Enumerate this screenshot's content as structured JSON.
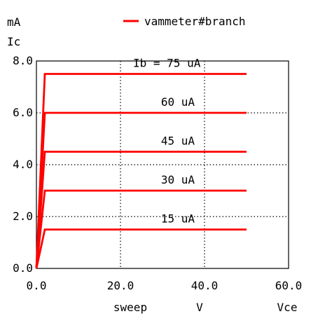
{
  "chart_data": {
    "type": "line",
    "title": "",
    "xlabel": "sweep",
    "xunit": "V",
    "xname": "Vce",
    "ylabel": "Ic",
    "yunit": "mA",
    "xlim": [
      0,
      60
    ],
    "ylim": [
      0,
      8
    ],
    "xticks": [
      0,
      20,
      40,
      60
    ],
    "yticks": [
      0,
      2,
      4,
      6,
      8
    ],
    "xtick_labels": [
      "0.0",
      "20.0",
      "40.0",
      "60.0"
    ],
    "ytick_labels": [
      "0.0",
      "2.0",
      "4.0",
      "6.0",
      "8.0"
    ],
    "grid": true,
    "legend_position": "top",
    "series_color": "#ff0000",
    "legend": {
      "label": "vammeter#branch",
      "color": "#ff0000"
    },
    "series": [
      {
        "name": "vammeter#branch",
        "curves": [
          {
            "label": "15 uA",
            "x": [
              0,
              2,
              50
            ],
            "y": [
              0,
              1.5,
              1.5
            ]
          },
          {
            "label": "30 uA",
            "x": [
              0,
              2,
              50
            ],
            "y": [
              0,
              3.0,
              3.0
            ]
          },
          {
            "label": "45 uA",
            "x": [
              0,
              2,
              50
            ],
            "y": [
              0,
              4.5,
              4.5
            ]
          },
          {
            "label": "60 uA",
            "x": [
              0,
              2,
              50
            ],
            "y": [
              0,
              6.0,
              6.0
            ]
          },
          {
            "label": "Ib = 75 uA",
            "x": [
              0,
              2,
              50
            ],
            "y": [
              0,
              7.5,
              7.5
            ]
          }
        ]
      }
    ]
  }
}
